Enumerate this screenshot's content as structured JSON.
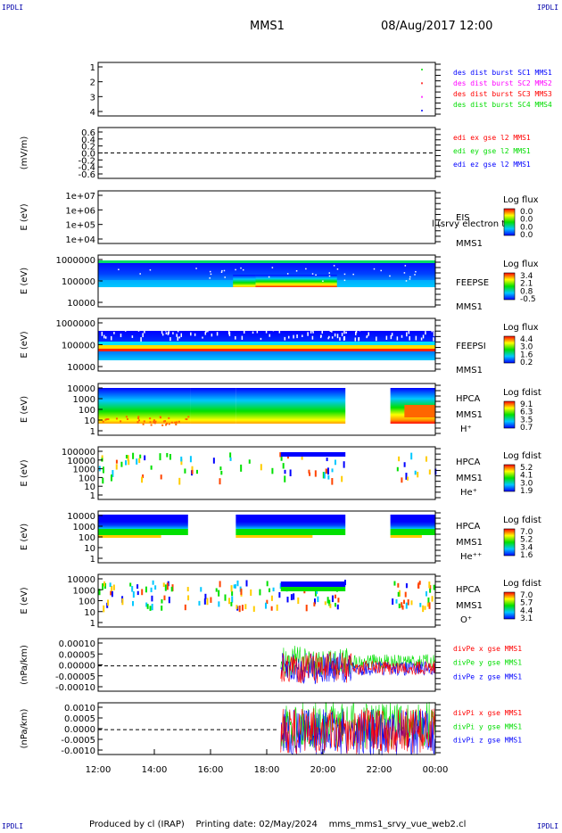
{
  "header": {
    "corner_left_top": "IPDLI",
    "corner_right_top": "IPDLI",
    "corner_left_bottom": "IPDLI",
    "corner_right_bottom": "IPDLI",
    "mission": "MMS1",
    "datetime": "08/Aug/2017 12:00"
  },
  "footer": {
    "produced": "Produced by cl (IRAP)",
    "printing": "Printing date: 02/May/2024",
    "script": "mms_mms1_srvy_vue_web2.cl"
  },
  "colors": {
    "blue": "#0000ff",
    "red": "#ff0000",
    "green": "#00dd00",
    "magenta": "#ff00ff",
    "navy": "#0000aa"
  },
  "chart_data": {
    "type": "multi-panel",
    "time_axis": {
      "ticks": [
        "12:00",
        "14:00",
        "16:00",
        "18:00",
        "20:00",
        "22:00",
        "00:00"
      ],
      "range_hours": [
        12,
        24
      ]
    },
    "panels": [
      {
        "id": "burst",
        "kind": "line",
        "yticks": [
          "1",
          "2",
          "3",
          "4"
        ],
        "ylabel": "",
        "legend": [
          {
            "text": "des dist burst SC1 MMS1",
            "color": "#0000ff"
          },
          {
            "text": "des dist burst SC2 MMS2",
            "color": "#ff00ff"
          },
          {
            "text": "des dist burst SC3 MMS3",
            "color": "#ff0000"
          },
          {
            "text": "des dist burst SC4 MMS4",
            "color": "#00dd00"
          }
        ],
        "marks": [
          {
            "t": 23.5,
            "y": 1,
            "color": "#0000ff"
          },
          {
            "t": 23.5,
            "y": 2,
            "color": "#ff00ff"
          },
          {
            "t": 23.5,
            "y": 3,
            "color": "#ff0000"
          },
          {
            "t": 23.5,
            "y": 4,
            "color": "#00dd00"
          }
        ]
      },
      {
        "id": "edi",
        "kind": "line",
        "yticks": [
          "0.6",
          "0.4",
          "0.2",
          "0.0",
          "-0.2",
          "-0.4",
          "-0.6"
        ],
        "ylabel": "(mV/m)",
        "legend": [
          {
            "text": "edi ex gse l2 MMS1",
            "color": "#ff0000"
          },
          {
            "text": "edi ey gse l2 MMS1",
            "color": "#00dd00"
          },
          {
            "text": "edi ez gse l2 MMS1",
            "color": "#0000ff"
          }
        ]
      },
      {
        "id": "eis",
        "kind": "spectrogram",
        "yticks": [
          "1e+07",
          "1e+06",
          "1e+05",
          "1e+04"
        ],
        "ylabel": "E (eV)",
        "right_labels": [
          "EIS",
          "MMS1"
        ],
        "overlay": "l (srvy electron to",
        "colorbar": {
          "title": "Log flux",
          "ticks": [
            "0.0",
            "0.0",
            "0.0",
            "0.0"
          ]
        }
      },
      {
        "id": "feepse",
        "kind": "spectrogram",
        "yticks": [
          "1000000",
          "100000",
          "10000"
        ],
        "ylabel": "E (eV)",
        "right_labels": [
          "FEEPSE",
          "MMS1"
        ],
        "colorbar": {
          "title": "Log flux",
          "ticks": [
            "3.4",
            "2.1",
            "0.8",
            "-0.5"
          ]
        }
      },
      {
        "id": "feepsi",
        "kind": "spectrogram",
        "yticks": [
          "1000000",
          "100000",
          "10000"
        ],
        "ylabel": "E (eV)",
        "right_labels": [
          "FEEPSI",
          "MMS1"
        ],
        "colorbar": {
          "title": "Log flux",
          "ticks": [
            "4.4",
            "3.0",
            "1.6",
            "0.2"
          ]
        }
      },
      {
        "id": "hpca_h",
        "kind": "spectrogram",
        "yticks": [
          "10000",
          "1000",
          "100",
          "10",
          "1"
        ],
        "ylabel": "E (eV)",
        "right_labels": [
          "HPCA",
          "MMS1",
          "H⁺"
        ],
        "colorbar": {
          "title": "Log fdist",
          "ticks": [
            "9.1",
            "6.3",
            "3.5",
            "0.7"
          ]
        }
      },
      {
        "id": "hpca_he",
        "kind": "spectrogram",
        "yticks": [
          "100000",
          "10000",
          "1000",
          "100",
          "10",
          "1"
        ],
        "ylabel": "E (eV)",
        "right_labels": [
          "HPCA",
          "MMS1",
          "He⁺"
        ],
        "colorbar": {
          "title": "Log fdist",
          "ticks": [
            "5.2",
            "4.1",
            "3.0",
            "1.9"
          ]
        }
      },
      {
        "id": "hpca_hepp",
        "kind": "spectrogram",
        "yticks": [
          "10000",
          "1000",
          "100",
          "10",
          "1"
        ],
        "ylabel": "E (eV)",
        "right_labels": [
          "HPCA",
          "MMS1",
          "He⁺⁺"
        ],
        "colorbar": {
          "title": "Log fdist",
          "ticks": [
            "7.0",
            "5.2",
            "3.4",
            "1.6"
          ]
        }
      },
      {
        "id": "hpca_o",
        "kind": "spectrogram",
        "yticks": [
          "10000",
          "1000",
          "100",
          "10",
          "1"
        ],
        "ylabel": "E (eV)",
        "right_labels": [
          "HPCA",
          "MMS1",
          "O⁺"
        ],
        "colorbar": {
          "title": "Log fdist",
          "ticks": [
            "7.0",
            "5.7",
            "4.4",
            "3.1"
          ]
        }
      },
      {
        "id": "divpe",
        "kind": "line",
        "yticks": [
          "0.00010",
          "0.00005",
          "0.00000",
          "-0.00005",
          "-0.00010"
        ],
        "ylabel": "(nPa/km)",
        "legend": [
          {
            "text": "divPe x gse MMS1",
            "color": "#ff0000"
          },
          {
            "text": "divPe y gse MMS1",
            "color": "#00dd00"
          },
          {
            "text": "divPe z gse MMS1",
            "color": "#0000ff"
          }
        ]
      },
      {
        "id": "divpi",
        "kind": "line",
        "yticks": [
          "0.0010",
          "0.0005",
          "0.0000",
          "-0.0005",
          "-0.0010"
        ],
        "ylabel": "(nPa/km)",
        "legend": [
          {
            "text": "divPi x gse MMS1",
            "color": "#ff0000"
          },
          {
            "text": "divPi y gse MMS1",
            "color": "#00dd00"
          },
          {
            "text": "divPi z gse MMS1",
            "color": "#0000ff"
          }
        ]
      }
    ]
  }
}
